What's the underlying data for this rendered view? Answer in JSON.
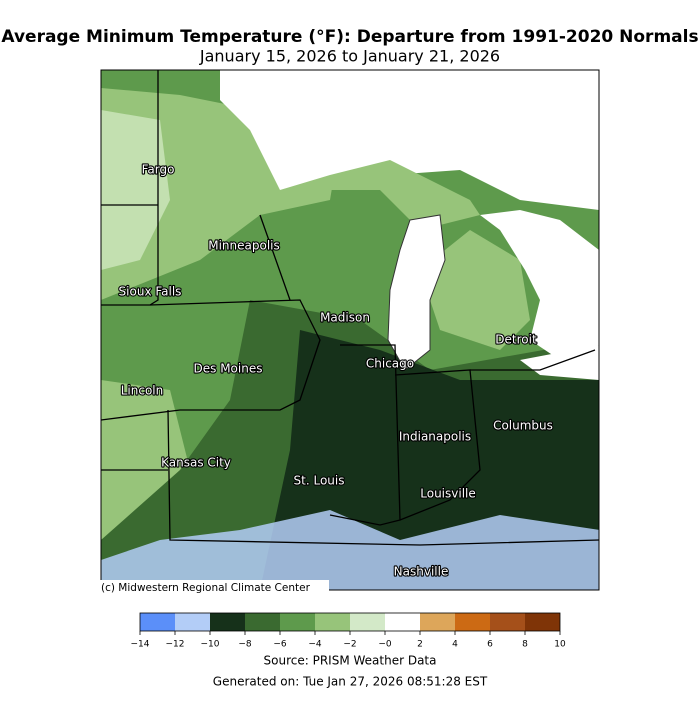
{
  "title": "Average Minimum Temperature (°F): Departure from 1991-2020 Normals",
  "subtitle": "January 15, 2026 to January 21, 2026",
  "cities": [
    "Fargo",
    "Minneapolis",
    "Sioux Falls",
    "Madison",
    "Detroit",
    "Chicago",
    "Des Moines",
    "Lincoln",
    "Columbus",
    "Indianapolis",
    "Kansas City",
    "St. Louis",
    "Louisville",
    "Nashville"
  ],
  "credit": "(c) Midwestern Regional Climate Center",
  "colorbar": {
    "ticks": [
      {
        "value": -14,
        "label": "−14"
      },
      {
        "value": -12,
        "label": "−12"
      },
      {
        "value": -10,
        "label": "−10"
      },
      {
        "value": -8,
        "label": "−8"
      },
      {
        "value": -6,
        "label": "−6"
      },
      {
        "value": -4,
        "label": "−4"
      },
      {
        "value": -2,
        "label": "−2"
      },
      {
        "value": 0,
        "label": "−0"
      },
      2,
      4,
      6,
      8,
      10
    ],
    "colors": [
      "#5b8ff9",
      "#b3cdf7",
      "#16311a",
      "#3a6a30",
      "#5e9a4c",
      "#97c47a",
      "#d3e9c8",
      "#ffffff",
      "#dda65a",
      "#cc6a14",
      "#a5501a",
      "#7f3407"
    ]
  },
  "source": "Source: PRISM Weather Data",
  "generated": "Generated on: Tue Jan 27, 2026 08:51:28 EST"
}
